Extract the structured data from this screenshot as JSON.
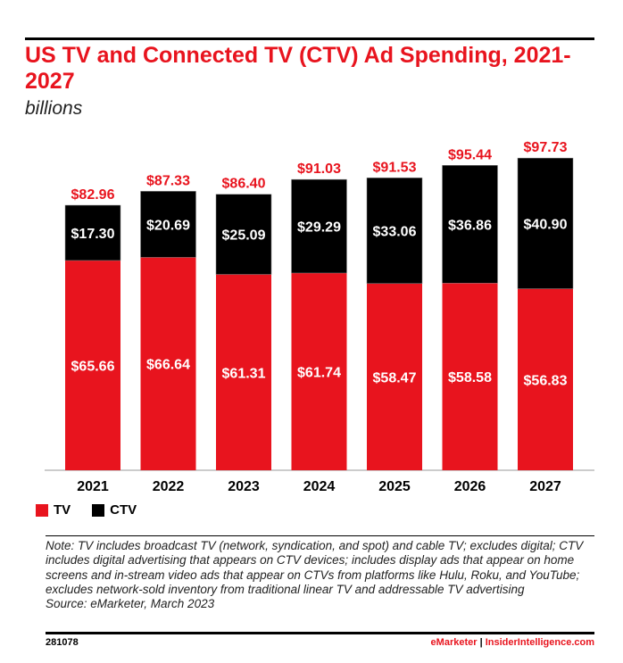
{
  "title": "US TV and Connected TV (CTV) Ad Spending, 2021-2027",
  "subtitle": "billions",
  "colors": {
    "tv": "#e8141e",
    "ctv": "#000000",
    "accent": "#e8141e"
  },
  "chart_data": {
    "type": "bar",
    "stacked": true,
    "title": "US TV and Connected TV (CTV) Ad Spending, 2021-2027",
    "subtitle": "billions",
    "categories": [
      "2021",
      "2022",
      "2023",
      "2024",
      "2025",
      "2026",
      "2027"
    ],
    "series": [
      {
        "name": "TV",
        "values": [
          65.66,
          66.64,
          61.31,
          61.74,
          58.47,
          58.58,
          56.83
        ],
        "labels": [
          "$65.66",
          "$66.64",
          "$61.31",
          "$61.74",
          "$58.47",
          "$58.58",
          "$56.83"
        ]
      },
      {
        "name": "CTV",
        "values": [
          17.3,
          20.69,
          25.09,
          29.29,
          33.06,
          36.86,
          40.9
        ],
        "labels": [
          "$17.30",
          "$20.69",
          "$25.09",
          "$29.29",
          "$33.06",
          "$36.86",
          "$40.90"
        ]
      }
    ],
    "totals": [
      82.96,
      87.33,
      86.4,
      91.03,
      91.53,
      95.44,
      97.73
    ],
    "total_labels": [
      "$82.96",
      "$87.33",
      "$86.40",
      "$91.03",
      "$91.53",
      "$95.44",
      "$97.73"
    ],
    "ylim": [
      0,
      100
    ],
    "grid": false,
    "legend": "bottom-left"
  },
  "legend": {
    "tv": "TV",
    "ctv": "CTV"
  },
  "note": "Note: TV includes broadcast TV (network, syndication, and spot) and cable TV; excludes digital; CTV includes digital advertising that appears on CTV devices; includes display ads that appear on home screens and in-stream video ads that appear on CTVs from platforms like Hulu, Roku, and YouTube; excludes network-sold inventory from traditional linear TV and addressable TV advertising",
  "source": "Source: eMarketer, March 2023",
  "footer": {
    "id": "281078",
    "brand": "eMarketer",
    "separator": "|",
    "site": "InsiderIntelligence.com"
  }
}
